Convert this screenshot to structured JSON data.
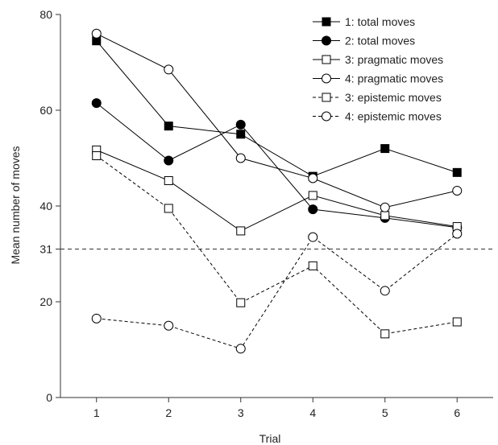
{
  "chart_data": {
    "type": "line",
    "title": "",
    "xlabel": "Trial",
    "ylabel": "Mean number of moves",
    "x": [
      1,
      2,
      3,
      4,
      5,
      6
    ],
    "xlim": [
      0.5,
      6.5
    ],
    "ylim": [
      0,
      80
    ],
    "yticks": [
      0,
      20,
      31,
      40,
      60,
      80
    ],
    "xticks": [
      1,
      2,
      3,
      4,
      5,
      6
    ],
    "grid": false,
    "legend_position": "top-right",
    "reference_line": {
      "y": 31,
      "style": "dashed"
    },
    "series": [
      {
        "name": "1: total moves",
        "values": [
          74.5,
          56.7,
          55.0,
          46.2,
          52.0,
          47.0
        ],
        "marker": "square",
        "fill": "filled",
        "line": "solid"
      },
      {
        "name": "2: total moves",
        "values": [
          61.5,
          49.5,
          57.0,
          39.3,
          37.5,
          35.5
        ],
        "marker": "circle",
        "fill": "filled",
        "line": "solid"
      },
      {
        "name": "3: pragmatic moves",
        "values": [
          51.7,
          45.3,
          34.8,
          42.2,
          38.0,
          35.7
        ],
        "marker": "square",
        "fill": "open",
        "line": "solid"
      },
      {
        "name": "4: pragmatic moves",
        "values": [
          76.0,
          68.5,
          50.0,
          45.8,
          39.7,
          43.2
        ],
        "marker": "circle",
        "fill": "open",
        "line": "solid"
      },
      {
        "name": "3: epistemic moves",
        "values": [
          50.5,
          39.5,
          19.8,
          27.5,
          13.3,
          15.8
        ],
        "marker": "square",
        "fill": "open",
        "line": "dashed"
      },
      {
        "name": "4: epistemic moves",
        "values": [
          16.5,
          15.0,
          10.2,
          33.5,
          22.3,
          34.2
        ],
        "marker": "circle",
        "fill": "open",
        "line": "dashed"
      }
    ]
  }
}
